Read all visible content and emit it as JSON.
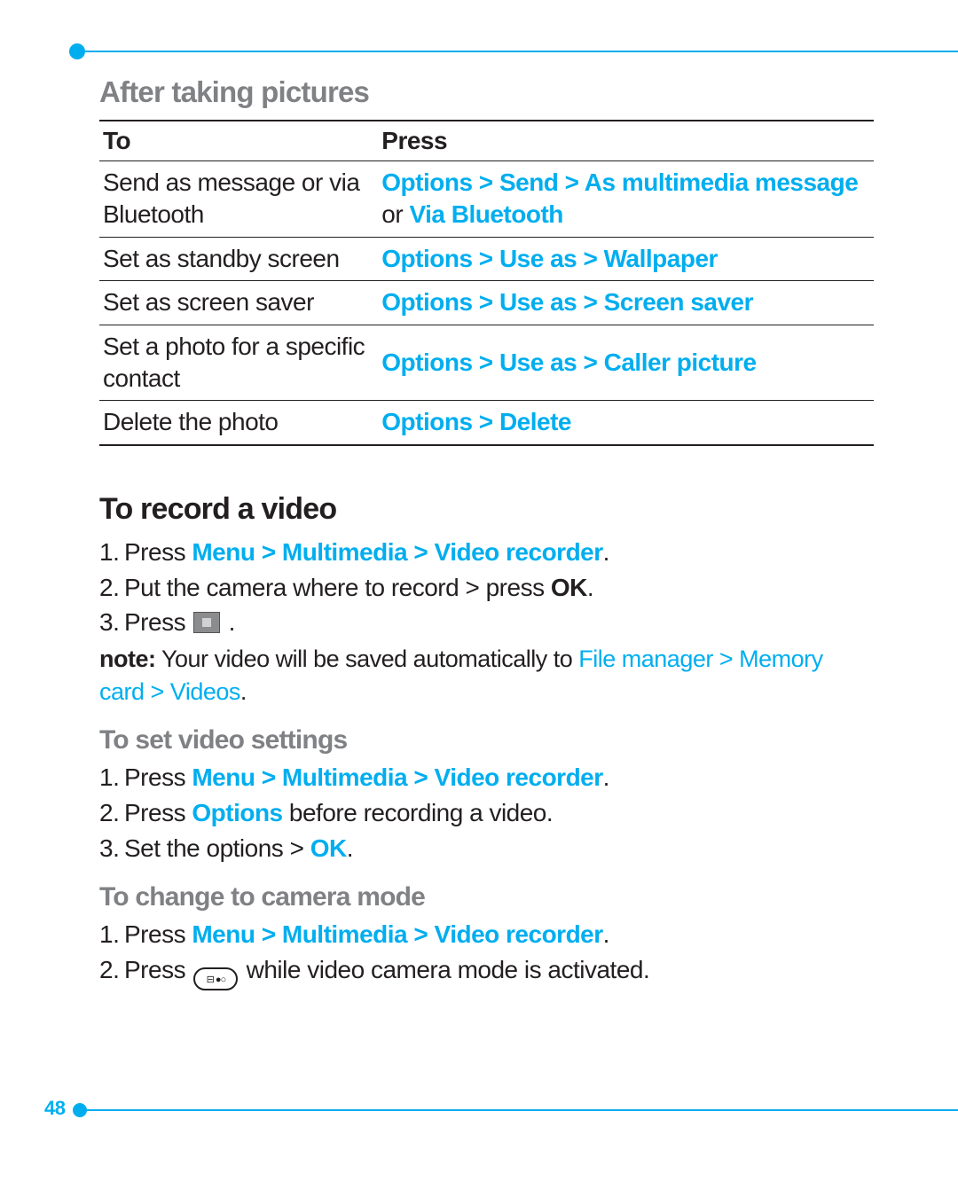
{
  "colors": {
    "accent": "#00aeef",
    "text": "#231f20",
    "muted": "#808184",
    "background": "#ffffff"
  },
  "typography": {
    "section_title_pt": 33,
    "subsection_title_pt": 30,
    "h2_pt": 34,
    "body_pt": 28,
    "note_pt": 27,
    "page_num_pt": 22
  },
  "page_number": "48",
  "section1": {
    "title": "After taking pictures",
    "table": {
      "header_to": "To",
      "header_press": "Press",
      "rows": [
        {
          "to": "Send as message or via Bluetooth",
          "press_accent1": "Options > Send > As multimedia message",
          "press_mid": " or ",
          "press_accent2": "Via Bluetooth"
        },
        {
          "to": "Set as standby screen",
          "press_accent1": "Options > Use as > Wallpaper"
        },
        {
          "to": "Set as screen saver",
          "press_accent1": "Options > Use as > Screen saver"
        },
        {
          "to": "Set a photo for a specific contact",
          "press_accent1": "Options > Use as > Caller picture"
        },
        {
          "to": "Delete the photo",
          "press_accent1": "Options > Delete"
        }
      ]
    }
  },
  "section2": {
    "title": "To record a video",
    "step1_pre": "Press ",
    "step1_accent": "Menu > Multimedia > Video recorder",
    "step1_post": ".",
    "step2_pre": "Put the camera where to record > press ",
    "step2_bold": "OK",
    "step2_post": ".",
    "step3_pre": "Press",
    "step3_post": ".",
    "note_label": "note:",
    "note_pre": " Your video will be saved automatically to ",
    "note_accent": "File manager > Memory card > Videos",
    "note_post": "."
  },
  "section3": {
    "title": "To set video settings",
    "step1_pre": "Press ",
    "step1_accent": "Menu > Multimedia > Video recorder",
    "step1_post": ".",
    "step2_pre": "Press ",
    "step2_accent": "Options",
    "step2_post": " before recording a video.",
    "step3_pre": "Set the options > ",
    "step3_accent": "OK",
    "step3_post": "."
  },
  "section4": {
    "title": "To change to camera mode",
    "step1_pre": "Press ",
    "step1_accent": "Menu > Multimedia > Video recorder",
    "step1_post": ".",
    "step2_pre": "Press",
    "step2_post": "while video camera mode is activated."
  }
}
